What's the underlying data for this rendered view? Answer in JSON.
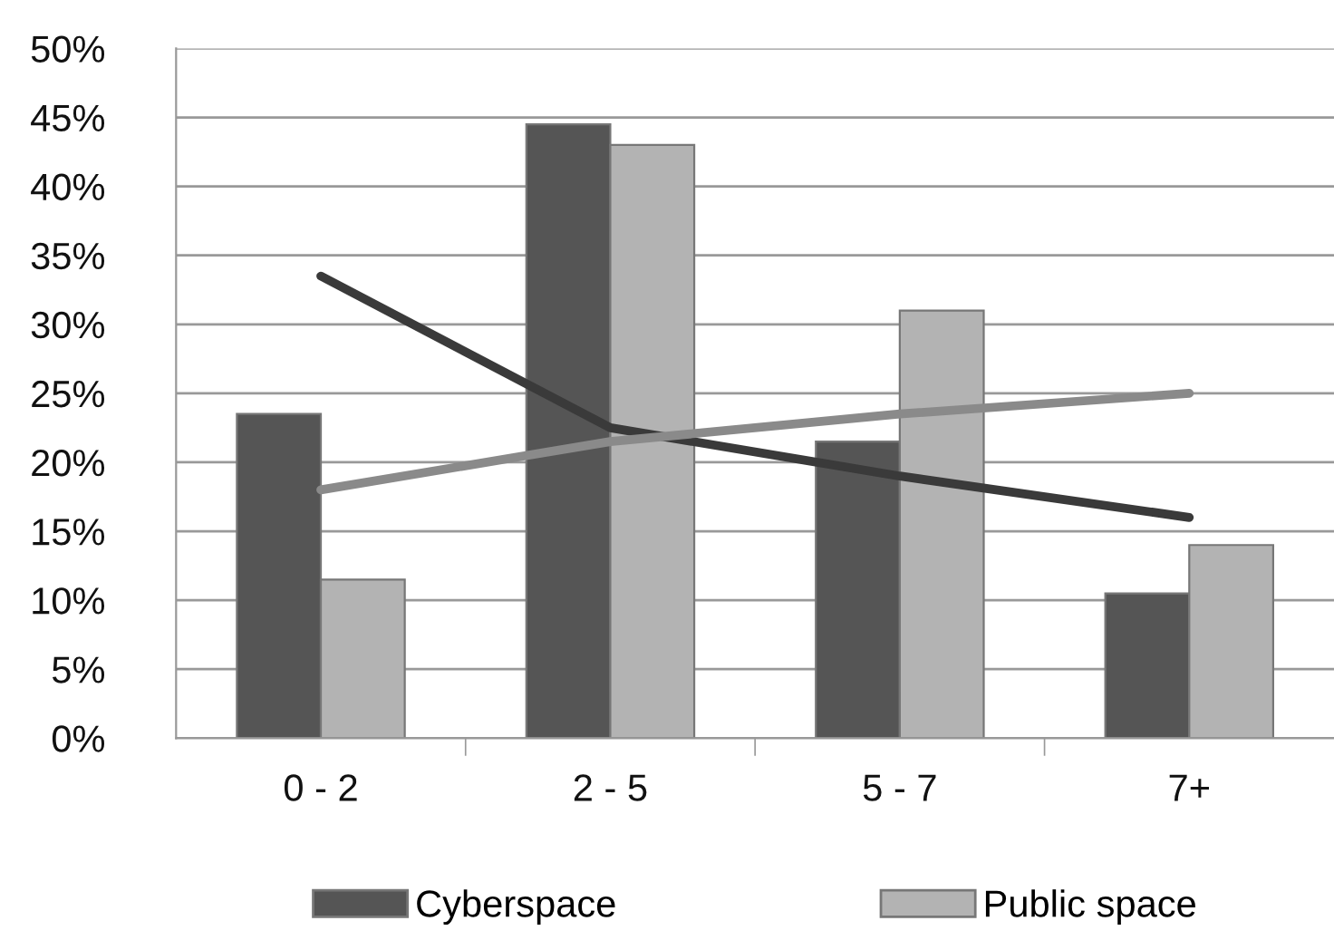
{
  "chart_data": {
    "type": "bar",
    "categories": [
      "0 - 2",
      "2 - 5",
      "5 - 7",
      "7+"
    ],
    "series": [
      {
        "name": "Cyberspace",
        "color": "#555555",
        "values": [
          23.5,
          44.5,
          21.5,
          10.5
        ]
      },
      {
        "name": "Public space",
        "color": "#b3b3b3",
        "values": [
          11.5,
          43,
          31,
          14
        ]
      },
      {
        "type": "line",
        "color": "#3a3a3a",
        "values": [
          33.5,
          22.5,
          19,
          16
        ]
      },
      {
        "type": "line",
        "color": "#8a8a8a",
        "values": [
          18,
          21.5,
          23.5,
          25
        ]
      }
    ],
    "ylim": [
      0,
      50
    ],
    "yticks": [
      {
        "value": 0,
        "label": "0%"
      },
      {
        "value": 5,
        "label": "5%"
      },
      {
        "value": 10,
        "label": "10%"
      },
      {
        "value": 15,
        "label": "15%"
      },
      {
        "value": 20,
        "label": "20%"
      },
      {
        "value": 25,
        "label": "25%"
      },
      {
        "value": 30,
        "label": "30%"
      },
      {
        "value": 35,
        "label": "35%"
      },
      {
        "value": 40,
        "label": "40%"
      },
      {
        "value": 45,
        "label": "45%"
      },
      {
        "value": 50,
        "label": "50%"
      }
    ],
    "grid": "y",
    "legend": "bottom"
  }
}
